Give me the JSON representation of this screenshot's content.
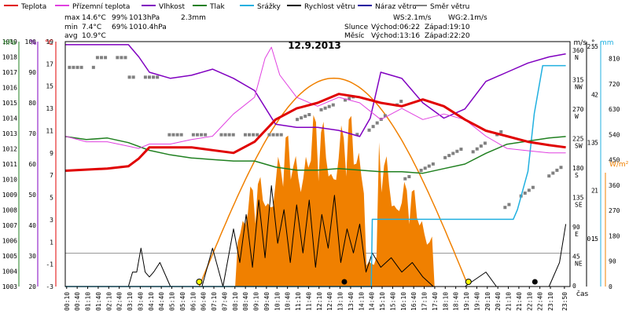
{
  "chart_data": {
    "type": "line",
    "title": "12.9.2013",
    "legend": [
      {
        "name": "Teplota",
        "color": "#e00000"
      },
      {
        "name": "Přízemní teplota",
        "color": "#e040e0"
      },
      {
        "name": "Vlhkost",
        "color": "#8000c0"
      },
      {
        "name": "Tlak",
        "color": "#208020"
      },
      {
        "name": "Srážky",
        "color": "#20b0e0"
      },
      {
        "name": "Rychlost větru",
        "color": "#000000"
      },
      {
        "name": "Náraz větru",
        "color": "#2000a0"
      },
      {
        "name": "Směr větru",
        "color": "#808080"
      }
    ],
    "stats": {
      "max": {
        "label": "max",
        "temp": "14.6°C",
        "hum": "99%",
        "press": "1013hPa",
        "rain": "2.3mm"
      },
      "min": {
        "label": "min",
        "temp": "7.4°C",
        "hum": "69%",
        "press": "1010.4hPa"
      },
      "avg": {
        "label": "avg",
        "temp": "10.9°C"
      }
    },
    "info": {
      "ws": "WS:2.1m/s",
      "wg": "WG:2.1m/s",
      "slunce": "Slunce",
      "slunce_vychod": "Východ:06:22",
      "slunce_zapad": "Západ:19:10",
      "mesic": "Měsíc",
      "mesic_vychod": "Východ:13:16",
      "mesic_zapad": "Západ:22:20"
    },
    "axes": {
      "hpa": {
        "unit": "hPa",
        "min": 1003,
        "max": 1019,
        "ticks": [
          "1019",
          "1018",
          "1017",
          "1016",
          "1015",
          "1014",
          "1013",
          "1012",
          "1011",
          "1010",
          "1009",
          "1008",
          "1007",
          "1006",
          "1005",
          "1004",
          "1003"
        ]
      },
      "pct": {
        "unit": "%",
        "min": 20,
        "max": 100,
        "ticks": [
          "100",
          "90",
          "80",
          "70",
          "60",
          "50",
          "40",
          "30",
          "20"
        ]
      },
      "temp": {
        "unit": "°C",
        "min": -3,
        "max": 19,
        "ticks": [
          "19",
          "17",
          "15",
          "13",
          "11",
          "9",
          "7",
          "5",
          "3",
          "1",
          "-1",
          "-3"
        ]
      },
      "wdir": {
        "unit": "°",
        "labels": [
          {
            "deg": "360",
            "dir": "N"
          },
          {
            "deg": "315",
            "dir": "NW"
          },
          {
            "deg": "270",
            "dir": "W"
          },
          {
            "deg": "225",
            "dir": "SW"
          },
          {
            "deg": "180",
            "dir": "S"
          },
          {
            "deg": "135",
            "dir": "SE"
          },
          {
            "deg": "90",
            "dir": "E"
          },
          {
            "deg": "45",
            "dir": "NE"
          },
          {
            "deg": "0",
            "dir": ""
          }
        ]
      },
      "ms": {
        "unit": "m/s",
        "min": 0,
        "max": 5,
        "ticks": [
          "5",
          "4",
          "3",
          "2",
          "1"
        ]
      },
      "mm": {
        "unit": "mm",
        "min": 0,
        "max": 2.5,
        "ticks": [
          "2.5",
          "2",
          "1.5",
          "1",
          "0.5"
        ]
      },
      "wm2": {
        "unit": "W/m²",
        "min": 0,
        "max": 810,
        "ticks": [
          "810",
          "720",
          "630",
          "540",
          "450",
          "360",
          "270",
          "180",
          "90",
          "0"
        ]
      },
      "x": {
        "unit": "čas",
        "labels": [
          "00:10",
          "00:40",
          "01:10",
          "01:40",
          "02:10",
          "02:40",
          "03:10",
          "03:40",
          "04:10",
          "04:40",
          "05:10",
          "05:40",
          "06:10",
          "06:40",
          "07:10",
          "07:40",
          "08:10",
          "08:40",
          "09:10",
          "09:40",
          "10:10",
          "10:40",
          "11:10",
          "11:40",
          "12:10",
          "12:40",
          "13:10",
          "13:40",
          "14:10",
          "14:40",
          "15:10",
          "15:40",
          "16:10",
          "16:40",
          "17:10",
          "17:40",
          "18:10",
          "18:40",
          "19:10",
          "19:40",
          "20:10",
          "20:40",
          "21:10",
          "21:40",
          "22:10",
          "22:40",
          "23:10",
          "23:50"
        ]
      }
    },
    "sun": {
      "sunrise": "06:22",
      "sunset": "19:10"
    },
    "moon": {
      "moonrise": "13:16",
      "moonset": "22:20"
    },
    "series": [
      {
        "name": "Teplota",
        "axis": "temp",
        "color": "#e00000",
        "x": [
          0,
          2,
          3,
          3.5,
          4,
          6,
          8,
          9,
          10,
          11,
          12,
          13,
          14,
          15,
          16,
          17,
          18,
          19,
          20,
          21,
          22,
          23,
          23.8
        ],
        "values": [
          7.4,
          7.6,
          7.8,
          8.5,
          9.5,
          9.5,
          9.0,
          10.0,
          12.0,
          13.0,
          13.5,
          14.3,
          14.0,
          13.5,
          13.2,
          13.8,
          13.2,
          12.0,
          11.0,
          10.5,
          10.0,
          9.7,
          9.5
        ]
      },
      {
        "name": "Přízemní teplota",
        "axis": "temp",
        "color": "#e040e0",
        "x": [
          0,
          1,
          2,
          3,
          3.5,
          4,
          5,
          6,
          7,
          7.5,
          8,
          9,
          9.5,
          9.8,
          10.2,
          11,
          12,
          13,
          14,
          15,
          16,
          17,
          18,
          19,
          20,
          21,
          22,
          23,
          23.8
        ],
        "values": [
          10.5,
          10,
          10,
          9.6,
          9.4,
          9.8,
          9.8,
          10.2,
          10.5,
          11.5,
          12.5,
          14,
          17.5,
          18.5,
          16,
          14,
          13.2,
          14,
          13.5,
          12,
          13,
          12,
          12.5,
          12,
          10.5,
          9.4,
          9.2,
          9.0,
          9.0
        ]
      },
      {
        "name": "Vlhkost",
        "axis": "pct",
        "color": "#8000c0",
        "x": [
          0,
          1,
          2,
          3,
          3.5,
          4,
          5,
          6,
          7,
          8,
          9,
          10,
          11,
          12,
          13,
          14,
          14.5,
          15,
          16,
          17,
          18,
          19,
          20,
          21,
          22,
          23,
          23.8
        ],
        "values": [
          99,
          99,
          99,
          99,
          95,
          90,
          88,
          89,
          91,
          88,
          84,
          73,
          72,
          72,
          71,
          69,
          75,
          90,
          88,
          80,
          75,
          78,
          87,
          90,
          93,
          95,
          96
        ]
      },
      {
        "name": "Tlak",
        "axis": "hpa",
        "color": "#208020",
        "x": [
          0,
          1,
          2,
          3,
          4,
          5,
          6,
          7,
          8,
          9,
          10,
          11,
          12,
          13,
          14,
          15,
          16,
          17,
          18,
          19,
          20,
          21,
          22,
          23,
          23.8
        ],
        "values": [
          1012.8,
          1012.6,
          1012.7,
          1012.4,
          1011.9,
          1011.6,
          1011.4,
          1011.3,
          1011.2,
          1011.2,
          1010.8,
          1010.6,
          1010.6,
          1010.7,
          1010.6,
          1010.5,
          1010.5,
          1010.4,
          1010.7,
          1011.0,
          1011.7,
          1012.3,
          1012.5,
          1012.7,
          1012.8
        ]
      },
      {
        "name": "Srážky",
        "axis": "mm",
        "color": "#20b0e0",
        "x": [
          0,
          14.55,
          14.6,
          21.3,
          21.5,
          22,
          22.3,
          22.7,
          23.5,
          23.8
        ],
        "values": [
          0,
          0,
          0.7,
          0.7,
          0.8,
          1.2,
          1.8,
          2.3,
          2.3,
          2.3
        ]
      },
      {
        "name": "Rychlost větru",
        "axis": "ms",
        "color": "#000000",
        "x": [
          0,
          3.0,
          3.2,
          3.4,
          3.6,
          3.8,
          4.0,
          4.2,
          4.5,
          5,
          6,
          6.5,
          7,
          7.5,
          8,
          8.3,
          8.6,
          8.9,
          9.2,
          9.5,
          9.8,
          10.1,
          10.4,
          10.7,
          11,
          11.3,
          11.6,
          11.9,
          12.2,
          12.5,
          12.8,
          13.1,
          13.4,
          13.7,
          14,
          14.3,
          14.6,
          15,
          15.5,
          16,
          16.5,
          17,
          17.5,
          18,
          19,
          20,
          20.5,
          21,
          22,
          23,
          23.5,
          23.8
        ],
        "values": [
          0,
          0,
          0.3,
          0.3,
          0.8,
          0.3,
          0.2,
          0.3,
          0.5,
          0,
          0,
          0,
          0.8,
          0,
          1.2,
          0.5,
          1.5,
          0.4,
          1.8,
          0.6,
          2.1,
          0.9,
          1.6,
          0.5,
          1.7,
          0.7,
          1.8,
          0.4,
          1.5,
          0.8,
          1.9,
          0.5,
          1.2,
          0.7,
          1.3,
          0.3,
          0.7,
          0.4,
          0.6,
          0.3,
          0.5,
          0.2,
          0,
          0,
          0,
          0.3,
          0,
          0,
          0,
          0,
          0.5,
          1.3
        ]
      }
    ]
  }
}
